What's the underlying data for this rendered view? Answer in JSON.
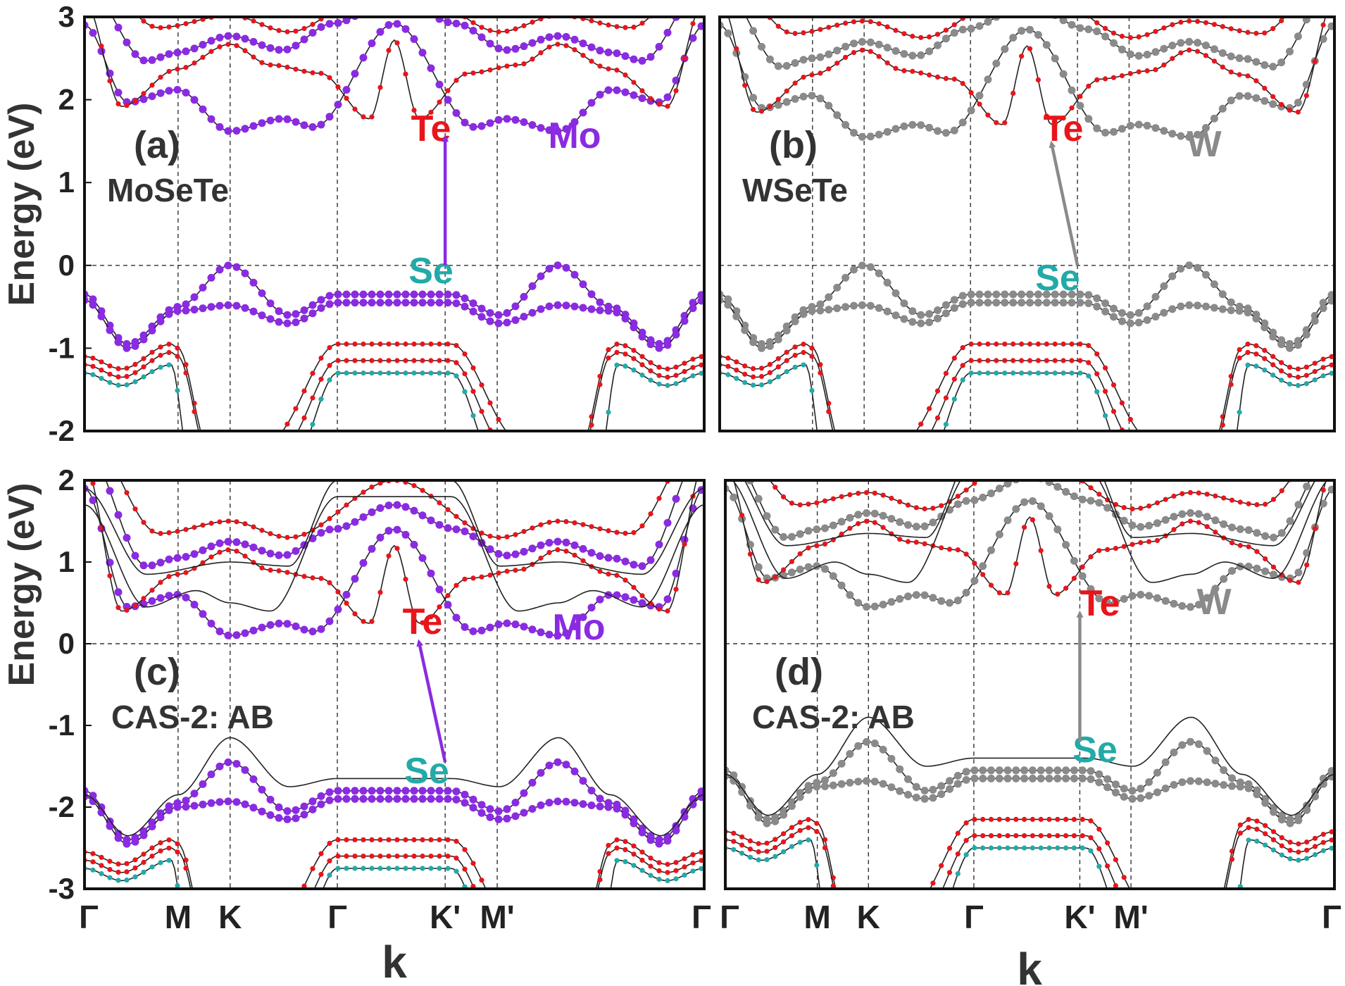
{
  "figure": {
    "ylabel": "Energy (eV)",
    "xlabel": "k",
    "k_ticks": [
      "Γ",
      "M",
      "K",
      "Γ",
      "K'",
      "M'",
      "Γ"
    ],
    "colors": {
      "Te": "#e8151b",
      "Se": "#22aaa8",
      "Mo": "#8a2be2",
      "W": "#8a8a8a",
      "bands": "#222222"
    }
  },
  "chart_data": [
    {
      "type": "line",
      "panel_label": "(a)",
      "compound": "MoSeTe",
      "ylim": [
        -2,
        3
      ],
      "yticks": [
        "3",
        "2",
        "1",
        "0",
        "-1",
        "-2"
      ],
      "metal": "Mo",
      "metal_color": "#8a2be2",
      "labels": {
        "Te": "Te",
        "Se": "Se",
        "metal": "Mo"
      },
      "conduction_min": 1.62,
      "valence_max": 0.0,
      "transition": {
        "from_k": "K'",
        "to_k": "K'",
        "from_e": 0.0,
        "to_e": 1.62
      }
    },
    {
      "type": "line",
      "panel_label": "(b)",
      "compound": "WSeTe",
      "ylim": [
        -2,
        3
      ],
      "yticks": [],
      "metal": "W",
      "metal_color": "#8a8a8a",
      "labels": {
        "Te": "Te",
        "Se": "Se",
        "metal": "W"
      },
      "conduction_min": 1.55,
      "valence_max": 0.0,
      "transition": {
        "from_k": "K'",
        "to_k": "Γ–K'",
        "from_e": 0.0,
        "to_e": 1.55
      }
    },
    {
      "type": "line",
      "panel_label": "(c)",
      "compound": "CAS-2: AB",
      "ylim": [
        -3,
        2
      ],
      "yticks": [
        "2",
        "1",
        "0",
        "-1",
        "-2",
        "-3"
      ],
      "metal": "Mo",
      "metal_color": "#8a2be2",
      "labels": {
        "Te": "Te",
        "Se": "Se",
        "metal": "Mo"
      },
      "conduction_min": 0.1,
      "valence_max": -1.45,
      "transition": {
        "from_k": "K'",
        "to_k": "Γ–K'",
        "from_e": -1.45,
        "to_e": 0.1
      }
    },
    {
      "type": "line",
      "panel_label": "(d)",
      "compound": "CAS-2: AB",
      "ylim": [
        -3,
        2
      ],
      "yticks": [],
      "metal": "W",
      "metal_color": "#8a8a8a",
      "labels": {
        "Te": "Te",
        "Se": "Se",
        "metal": "W"
      },
      "conduction_min": 0.45,
      "valence_max": -1.2,
      "transition": {
        "from_k": "K'",
        "to_k": "K'",
        "from_e": -1.2,
        "to_e": 0.45
      }
    }
  ]
}
